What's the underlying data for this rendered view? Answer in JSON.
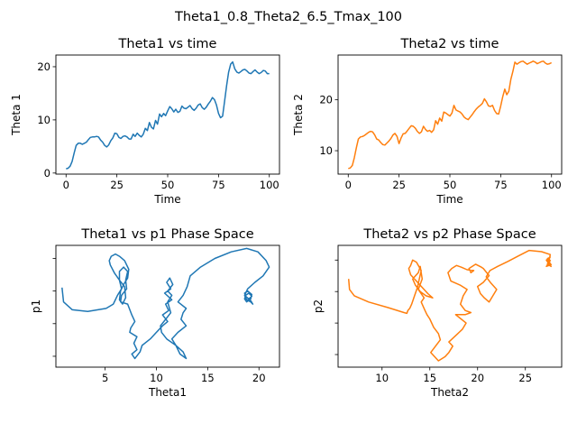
{
  "figure": {
    "suptitle": "Theta1_0.8_Theta2_6.5_Tmax_100"
  },
  "colors": {
    "theta1": "#1f77b4",
    "theta2": "#ff7f0e"
  },
  "chart_data": [
    {
      "type": "line",
      "title": "Theta1 vs time",
      "xlabel": "Time",
      "ylabel": "Theta 1",
      "xlim": [
        -5,
        105
      ],
      "ylim": [
        -0.2,
        22.2
      ],
      "xticks": [
        0,
        25,
        50,
        75,
        100
      ],
      "yticks": [
        0,
        10,
        20
      ],
      "x": [
        0,
        1,
        2,
        3,
        4,
        5,
        6,
        7,
        8,
        9,
        10,
        11,
        12,
        13,
        14,
        15,
        16,
        17,
        18,
        19,
        20,
        21,
        22,
        23,
        24,
        25,
        26,
        27,
        28,
        29,
        30,
        31,
        32,
        33,
        34,
        35,
        36,
        37,
        38,
        39,
        40,
        41,
        42,
        43,
        44,
        45,
        46,
        47,
        48,
        49,
        50,
        51,
        52,
        53,
        54,
        55,
        56,
        57,
        58,
        59,
        60,
        61,
        62,
        63,
        64,
        65,
        66,
        67,
        68,
        69,
        70,
        71,
        72,
        73,
        74,
        75,
        76,
        77,
        78,
        79,
        80,
        81,
        82,
        83,
        84,
        85,
        86,
        87,
        88,
        89,
        90,
        91,
        92,
        93,
        94,
        95,
        96,
        97,
        98,
        99,
        100
      ],
      "series": [
        {
          "values": [
            0.8,
            0.9,
            1.3,
            2.2,
            3.8,
            5.2,
            5.6,
            5.6,
            5.4,
            5.6,
            5.8,
            6.3,
            6.7,
            6.8,
            6.8,
            6.9,
            6.8,
            6.2,
            5.8,
            5.2,
            4.9,
            5.3,
            6.1,
            6.6,
            7.5,
            7.4,
            6.7,
            6.5,
            6.9,
            7.0,
            6.8,
            6.4,
            6.4,
            7.3,
            6.9,
            7.5,
            7.1,
            6.8,
            7.3,
            8.4,
            8.0,
            9.5,
            8.6,
            8.3,
            9.9,
            9.2,
            11.1,
            10.6,
            11.2,
            10.8,
            11.7,
            12.5,
            12.1,
            11.5,
            12.0,
            11.4,
            11.6,
            12.6,
            12.2,
            12.1,
            12.4,
            12.7,
            12.1,
            11.8,
            12.2,
            12.8,
            13.0,
            12.3,
            12.0,
            12.4,
            13.0,
            13.5,
            14.2,
            13.8,
            12.8,
            11.2,
            10.4,
            10.7,
            13.5,
            16.5,
            19.0,
            20.5,
            20.9,
            19.6,
            19.0,
            18.8,
            19.1,
            19.4,
            19.5,
            19.2,
            18.8,
            18.7,
            19.1,
            19.4,
            19.0,
            18.7,
            18.9,
            19.3,
            19.2,
            18.7,
            18.7
          ]
        }
      ]
    },
    {
      "type": "line",
      "title": "Theta2 vs time",
      "xlabel": "Time",
      "ylabel": "Theta 2",
      "xlim": [
        -5,
        105
      ],
      "ylim": [
        5.4,
        28.8
      ],
      "xticks": [
        0,
        25,
        50,
        75,
        100
      ],
      "yticks": [
        10,
        20
      ],
      "x": [
        0,
        1,
        2,
        3,
        4,
        5,
        6,
        7,
        8,
        9,
        10,
        11,
        12,
        13,
        14,
        15,
        16,
        17,
        18,
        19,
        20,
        21,
        22,
        23,
        24,
        25,
        26,
        27,
        28,
        29,
        30,
        31,
        32,
        33,
        34,
        35,
        36,
        37,
        38,
        39,
        40,
        41,
        42,
        43,
        44,
        45,
        46,
        47,
        48,
        49,
        50,
        51,
        52,
        53,
        54,
        55,
        56,
        57,
        58,
        59,
        60,
        61,
        62,
        63,
        64,
        65,
        66,
        67,
        68,
        69,
        70,
        71,
        72,
        73,
        74,
        75,
        76,
        77,
        78,
        79,
        80,
        81,
        82,
        83,
        84,
        85,
        86,
        87,
        88,
        89,
        90,
        91,
        92,
        93,
        94,
        95,
        96,
        97,
        98,
        99,
        100
      ],
      "series": [
        {
          "values": [
            6.5,
            6.6,
            7.1,
            8.6,
            10.6,
            12.3,
            12.7,
            12.8,
            13.0,
            13.3,
            13.6,
            13.8,
            13.7,
            13.1,
            12.3,
            12.1,
            11.6,
            11.2,
            11.1,
            11.5,
            11.9,
            12.4,
            13.1,
            13.4,
            12.8,
            11.4,
            12.5,
            13.3,
            13.4,
            13.9,
            14.4,
            14.9,
            14.8,
            14.4,
            13.8,
            13.4,
            13.7,
            14.8,
            14.2,
            13.8,
            14.0,
            13.6,
            14.1,
            15.9,
            15.2,
            16.4,
            15.8,
            17.6,
            17.4,
            17.1,
            16.8,
            17.4,
            18.9,
            18.0,
            17.8,
            17.6,
            17.2,
            16.6,
            16.3,
            16.1,
            16.6,
            17.1,
            17.7,
            18.2,
            18.6,
            18.9,
            19.3,
            20.2,
            19.6,
            18.8,
            18.7,
            18.9,
            17.9,
            17.3,
            17.2,
            18.8,
            20.6,
            22.1,
            21.0,
            21.7,
            24.0,
            25.6,
            27.4,
            27.0,
            27.3,
            27.5,
            27.6,
            27.3,
            27.0,
            27.2,
            27.4,
            27.6,
            27.4,
            27.1,
            27.3,
            27.5,
            27.6,
            27.2,
            27.0,
            27.1,
            27.3
          ]
        }
      ]
    },
    {
      "type": "line",
      "title": "Theta1 vs p1 Phase Space",
      "xlabel": "Theta1",
      "ylabel": "p1",
      "xlim": [
        0.2,
        22.0
      ],
      "ylim": [
        -1.75,
        1.05
      ],
      "xticks": [
        5,
        10,
        15,
        20
      ],
      "yticks": [
        -1.5,
        -0.75,
        0.0,
        0.75
      ],
      "ytick_labels_shown": false,
      "x": [
        0.8,
        0.95,
        1.8,
        3.3,
        5.1,
        5.8,
        6.2,
        6.6,
        6.4,
        5.9,
        5.5,
        5.4,
        5.6,
        6.0,
        6.4,
        6.9,
        7.3,
        7.2,
        6.8,
        6.5,
        6.4,
        6.7,
        7.0,
        6.9,
        6.4,
        6.4,
        6.8,
        7.2,
        7.0,
        7.1,
        6.6,
        6.5,
        7.2,
        7.6,
        7.9,
        7.5,
        7.4,
        8.1,
        7.8,
        8.1,
        7.6,
        7.9,
        8.4,
        8.6,
        9.4,
        10.0,
        10.6,
        11.1,
        10.6,
        11.2,
        10.9,
        11.5,
        10.8,
        11.4,
        11.0,
        11.3,
        11.6,
        11.1,
        11.5,
        11.1,
        11.4,
        10.9,
        10.4,
        10.5,
        11.0,
        11.9,
        12.3,
        12.9,
        12.6,
        11.9,
        11.5,
        12.1,
        12.9,
        12.4,
        12.6,
        12.9,
        12.1,
        12.6,
        13.0,
        13.3,
        14.3,
        15.7,
        17.3,
        18.8,
        19.9,
        20.7,
        21.0,
        20.4,
        19.6,
        18.9,
        18.6,
        18.8,
        19.2,
        19.4,
        19.2,
        18.7,
        18.6,
        18.9,
        19.3,
        19.2,
        18.8,
        18.6,
        18.7,
        19.0,
        19.3,
        18.9
      ],
      "series": [
        {
          "values": [
            0.08,
            -0.25,
            -0.43,
            -0.47,
            -0.4,
            -0.3,
            -0.1,
            0.05,
            0.25,
            0.42,
            0.6,
            0.7,
            0.8,
            0.85,
            0.8,
            0.7,
            0.5,
            0.3,
            0.15,
            0.0,
            -0.2,
            -0.3,
            -0.15,
            0.1,
            0.25,
            0.45,
            0.55,
            0.45,
            0.25,
            0.05,
            -0.1,
            -0.25,
            -0.3,
            -0.55,
            -0.7,
            -0.85,
            -0.95,
            -1.05,
            -1.2,
            -1.35,
            -1.45,
            -1.55,
            -1.4,
            -1.25,
            -1.1,
            -0.95,
            -0.8,
            -0.7,
            -0.55,
            -0.45,
            -0.3,
            -0.2,
            -0.05,
            0.05,
            0.2,
            0.3,
            0.15,
            0.0,
            -0.1,
            -0.25,
            -0.5,
            -0.65,
            -0.8,
            -0.95,
            -1.1,
            -1.25,
            -1.45,
            -1.55,
            -1.4,
            -1.25,
            -1.1,
            -0.95,
            -0.8,
            -0.65,
            -0.5,
            -0.4,
            -0.25,
            -0.1,
            0.1,
            0.35,
            0.55,
            0.75,
            0.9,
            0.98,
            0.9,
            0.7,
            0.55,
            0.35,
            0.2,
            0.05,
            -0.1,
            -0.2,
            -0.25,
            -0.3,
            -0.22,
            -0.12,
            -0.05,
            0.0,
            -0.08,
            -0.18,
            -0.25,
            -0.18,
            -0.1,
            -0.05,
            -0.12,
            -0.2
          ]
        }
      ]
    },
    {
      "type": "line",
      "title": "Theta2 vs p2 Phase Space",
      "xlabel": "Theta2",
      "ylabel": "p2",
      "xlim": [
        5.4,
        28.8
      ],
      "ylim": [
        -1.8,
        1.1
      ],
      "xticks": [
        10,
        15,
        20,
        25
      ],
      "yticks": [
        -1.5,
        -0.75,
        0.0,
        0.75
      ],
      "ytick_labels_shown": false,
      "x": [
        6.5,
        6.6,
        7.1,
        8.6,
        10.6,
        12.3,
        12.6,
        12.7,
        12.9,
        13.1,
        13.4,
        13.7,
        13.9,
        14.1,
        13.6,
        13.2,
        13.0,
        12.8,
        13.0,
        13.6,
        14.2,
        14.8,
        15.3,
        14.6,
        14.0,
        13.5,
        13.2,
        13.8,
        14.0,
        14.2,
        13.8,
        14.4,
        14.1,
        14.5,
        14.7,
        15.0,
        15.4,
        15.9,
        16.1,
        15.6,
        15.1,
        15.9,
        16.6,
        17.0,
        17.4,
        17.0,
        17.7,
        18.4,
        18.8,
        17.7,
        18.7,
        19.3,
        18.7,
        18.2,
        18.5,
        18.9,
        18.2,
        17.2,
        16.9,
        17.3,
        17.8,
        18.3,
        18.9,
        19.6,
        19.3,
        19.1,
        19.8,
        20.4,
        20.6,
        21.2,
        20.6,
        20.0,
        20.3,
        20.7,
        21.2,
        21.6,
        22.0,
        21.4,
        20.9,
        21.3,
        22.1,
        23.2,
        24.3,
        25.4,
        26.7,
        27.6,
        27.5,
        27.3,
        27.7,
        27.4,
        27.2,
        27.6,
        27.3,
        27.5,
        27.7,
        27.2,
        27.4,
        27.6,
        27.3
      ],
      "series": [
        {
          "values": [
            0.3,
            0.05,
            -0.1,
            -0.25,
            -0.38,
            -0.5,
            -0.52,
            -0.45,
            -0.4,
            -0.3,
            -0.1,
            0.1,
            0.3,
            0.5,
            0.7,
            0.75,
            0.62,
            0.55,
            0.4,
            0.25,
            0.1,
            -0.05,
            -0.15,
            -0.1,
            0.0,
            0.15,
            0.3,
            0.45,
            0.6,
            0.3,
            0.05,
            -0.15,
            -0.25,
            -0.45,
            -0.55,
            -0.65,
            -0.85,
            -1.0,
            -1.15,
            -1.3,
            -1.45,
            -1.65,
            -1.55,
            -1.45,
            -1.3,
            -1.2,
            -1.05,
            -0.9,
            -0.75,
            -0.55,
            -0.55,
            -0.5,
            -0.45,
            -0.3,
            -0.1,
            0.05,
            0.15,
            0.25,
            0.45,
            0.55,
            0.62,
            0.58,
            0.52,
            0.5,
            0.45,
            0.55,
            0.65,
            0.58,
            0.55,
            0.38,
            0.22,
            0.12,
            -0.05,
            -0.15,
            -0.25,
            -0.1,
            0.05,
            0.2,
            0.35,
            0.5,
            0.6,
            0.72,
            0.85,
            0.98,
            0.95,
            0.88,
            0.75,
            0.65,
            0.6,
            0.68,
            0.75,
            0.82,
            0.78,
            0.7,
            0.64,
            0.6,
            0.66,
            0.74,
            0.8
          ]
        }
      ]
    }
  ]
}
